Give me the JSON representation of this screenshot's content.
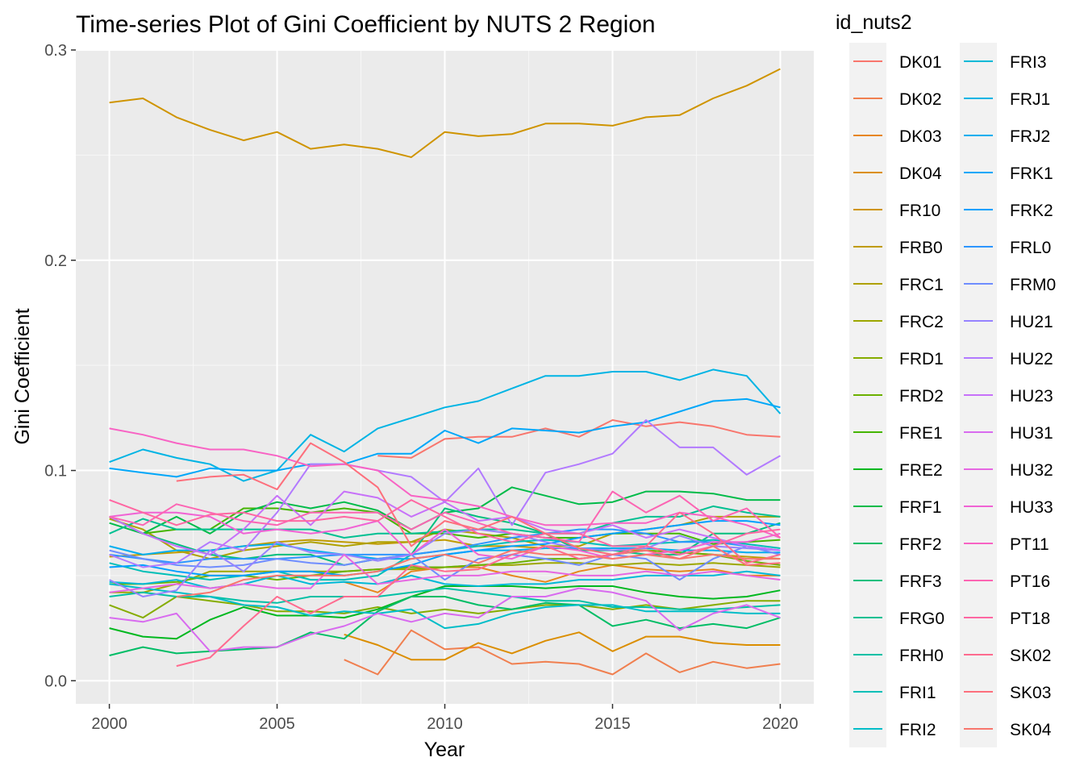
{
  "chart_data": {
    "type": "line",
    "title": "Time-series Plot of Gini Coefficient by NUTS 2 Region",
    "xlabel": "Year",
    "ylabel": "Gini Coefficient",
    "xlim": [
      1999,
      2021
    ],
    "ylim": [
      -0.011,
      0.3
    ],
    "x_ticks": [
      2000,
      2005,
      2010,
      2015,
      2020
    ],
    "x_tick_labels": [
      "2000",
      "2005",
      "2010",
      "2015",
      "2020"
    ],
    "y_ticks": [
      0.0,
      0.1,
      0.2,
      0.3
    ],
    "y_tick_labels": [
      "0.0",
      "0.1",
      "0.2",
      "0.3"
    ],
    "grid": true,
    "legend_title": "id_nuts2",
    "legend_position": "right",
    "legend_columns": 2,
    "x": [
      2000,
      2001,
      2002,
      2003,
      2004,
      2005,
      2006,
      2007,
      2008,
      2009,
      2010,
      2011,
      2012,
      2013,
      2014,
      2015,
      2016,
      2017,
      2018,
      2019,
      2020
    ],
    "series": [
      {
        "name": "DK01",
        "color": "#F8766D",
        "values": [
          null,
          null,
          null,
          null,
          null,
          null,
          null,
          null,
          0.107,
          0.106,
          0.115,
          0.116,
          0.116,
          0.12,
          0.116,
          0.124,
          0.121,
          0.123,
          0.121,
          0.117,
          0.116
        ]
      },
      {
        "name": "DK02",
        "color": "#F07F4F",
        "values": [
          null,
          null,
          null,
          null,
          null,
          null,
          null,
          0.01,
          0.003,
          0.024,
          0.015,
          0.016,
          0.008,
          0.009,
          0.008,
          0.003,
          0.013,
          0.004,
          0.009,
          0.006,
          0.008
        ]
      },
      {
        "name": "DK03",
        "color": "#E7861B",
        "values": [
          null,
          null,
          null,
          null,
          null,
          null,
          null,
          0.047,
          0.042,
          0.052,
          0.054,
          0.054,
          0.05,
          0.047,
          0.052,
          0.055,
          0.053,
          0.052,
          0.053,
          0.05,
          0.05
        ]
      },
      {
        "name": "DK04",
        "color": "#DB8E00",
        "values": [
          null,
          null,
          null,
          null,
          null,
          null,
          null,
          0.022,
          0.017,
          0.01,
          0.01,
          0.018,
          0.013,
          0.019,
          0.023,
          0.014,
          0.021,
          0.021,
          0.018,
          0.017,
          0.017
        ]
      },
      {
        "name": "FR10",
        "color": "#CF9400",
        "values": [
          0.275,
          0.277,
          0.268,
          0.262,
          0.257,
          0.261,
          0.253,
          0.255,
          0.253,
          0.249,
          0.261,
          0.259,
          0.26,
          0.265,
          0.265,
          0.264,
          0.268,
          0.269,
          0.277,
          0.283,
          0.291
        ]
      },
      {
        "name": "FRB0",
        "color": "#C09B00",
        "values": [
          0.059,
          0.06,
          0.061,
          0.062,
          0.064,
          0.066,
          0.067,
          0.066,
          0.065,
          0.066,
          0.067,
          0.064,
          0.064,
          0.063,
          0.063,
          0.062,
          0.062,
          0.061,
          0.06,
          0.059,
          0.058
        ]
      },
      {
        "name": "FRC1",
        "color": "#AFA100",
        "values": [
          0.077,
          0.072,
          0.062,
          0.058,
          0.062,
          0.064,
          0.066,
          0.064,
          0.066,
          0.066,
          0.072,
          0.07,
          0.068,
          0.064,
          0.064,
          0.07,
          0.072,
          0.074,
          0.078,
          0.078,
          0.078
        ]
      },
      {
        "name": "FRC2",
        "color": "#9DA700",
        "values": [
          0.042,
          0.042,
          0.046,
          0.052,
          0.052,
          0.052,
          0.052,
          0.052,
          0.053,
          0.053,
          0.054,
          0.055,
          0.055,
          0.056,
          0.056,
          0.055,
          0.056,
          0.055,
          0.056,
          0.055,
          0.054
        ]
      },
      {
        "name": "FRD1",
        "color": "#86AC00",
        "values": [
          0.036,
          0.03,
          0.04,
          0.038,
          0.036,
          0.033,
          0.033,
          0.032,
          0.035,
          0.032,
          0.034,
          0.032,
          0.034,
          0.036,
          0.036,
          0.034,
          0.036,
          0.034,
          0.036,
          0.038,
          0.038
        ]
      },
      {
        "name": "FRD2",
        "color": "#6BB100",
        "values": [
          0.046,
          0.046,
          0.047,
          0.05,
          0.05,
          0.048,
          0.05,
          0.052,
          0.053,
          0.054,
          0.054,
          0.055,
          0.056,
          0.058,
          0.058,
          0.06,
          0.062,
          0.061,
          0.06,
          0.057,
          0.055
        ]
      },
      {
        "name": "FRE1",
        "color": "#45B500",
        "values": [
          0.078,
          0.07,
          0.072,
          0.072,
          0.082,
          0.082,
          0.08,
          0.082,
          0.08,
          0.07,
          0.07,
          0.068,
          0.07,
          0.068,
          0.068,
          0.07,
          0.07,
          0.07,
          0.065,
          0.066,
          0.067
        ]
      },
      {
        "name": "FRE2",
        "color": "#00B81F",
        "values": [
          0.025,
          0.021,
          0.02,
          0.029,
          0.035,
          0.031,
          0.031,
          0.03,
          0.034,
          0.04,
          0.045,
          0.045,
          0.045,
          0.044,
          0.045,
          0.045,
          0.042,
          0.04,
          0.039,
          0.04,
          0.043
        ]
      },
      {
        "name": "FRF1",
        "color": "#00BB49",
        "values": [
          0.075,
          0.07,
          0.078,
          0.07,
          0.08,
          0.085,
          0.082,
          0.085,
          0.081,
          0.072,
          0.08,
          0.082,
          0.092,
          0.088,
          0.084,
          0.085,
          0.09,
          0.09,
          0.089,
          0.086,
          0.086
        ]
      },
      {
        "name": "FRF2",
        "color": "#00BD66",
        "values": [
          0.012,
          0.016,
          0.013,
          0.014,
          0.015,
          0.016,
          0.023,
          0.02,
          0.033,
          0.04,
          0.04,
          0.036,
          0.034,
          0.037,
          0.036,
          0.026,
          0.029,
          0.025,
          0.027,
          0.025,
          0.03
        ]
      },
      {
        "name": "FRF3",
        "color": "#00BF7D",
        "values": [
          0.078,
          0.07,
          0.065,
          0.06,
          0.058,
          0.06,
          0.06,
          0.055,
          0.058,
          0.06,
          0.082,
          0.078,
          0.075,
          0.07,
          0.062,
          0.062,
          0.06,
          0.06,
          0.07,
          0.07,
          0.075
        ]
      },
      {
        "name": "FRG0",
        "color": "#00C092",
        "values": [
          0.07,
          0.077,
          0.072,
          0.072,
          0.072,
          0.072,
          0.072,
          0.068,
          0.07,
          0.07,
          0.071,
          0.072,
          0.072,
          0.07,
          0.07,
          0.075,
          0.078,
          0.078,
          0.083,
          0.08,
          0.078
        ]
      },
      {
        "name": "FRH0",
        "color": "#00C0A5",
        "values": [
          0.04,
          0.042,
          0.04,
          0.04,
          0.038,
          0.037,
          0.04,
          0.04,
          0.04,
          0.042,
          0.044,
          0.042,
          0.04,
          0.038,
          0.038,
          0.035,
          0.035,
          0.034,
          0.034,
          0.035,
          0.036
        ]
      },
      {
        "name": "FRI1",
        "color": "#00BFB7",
        "values": [
          0.056,
          0.052,
          0.05,
          0.048,
          0.05,
          0.052,
          0.048,
          0.048,
          0.05,
          0.06,
          0.062,
          0.064,
          0.066,
          0.067,
          0.066,
          0.064,
          0.065,
          0.066,
          0.067,
          0.065,
          0.063
        ]
      },
      {
        "name": "FRI2",
        "color": "#00BDC8",
        "values": [
          0.046,
          0.044,
          0.042,
          0.04,
          0.036,
          0.035,
          0.031,
          0.033,
          0.032,
          0.034,
          0.025,
          0.027,
          0.032,
          0.035,
          0.036,
          0.036,
          0.033,
          0.033,
          0.033,
          0.032,
          0.032
        ]
      },
      {
        "name": "FRI3",
        "color": "#00B9D7",
        "values": [
          0.047,
          0.046,
          0.048,
          0.044,
          0.046,
          0.05,
          0.046,
          0.047,
          0.046,
          0.05,
          0.046,
          0.045,
          0.046,
          0.046,
          0.048,
          0.048,
          0.05,
          0.05,
          0.05,
          0.052,
          0.05
        ]
      },
      {
        "name": "FRJ1",
        "color": "#00B4E4",
        "values": [
          0.104,
          0.11,
          0.106,
          0.103,
          0.095,
          0.1,
          0.117,
          0.109,
          0.12,
          0.125,
          0.13,
          0.133,
          0.139,
          0.145,
          0.145,
          0.147,
          0.147,
          0.143,
          0.148,
          0.145,
          0.127
        ]
      },
      {
        "name": "FRJ2",
        "color": "#00AEEF",
        "values": [
          0.064,
          0.06,
          0.062,
          0.062,
          0.064,
          0.065,
          0.062,
          0.06,
          0.058,
          0.058,
          0.06,
          0.062,
          0.062,
          0.063,
          0.063,
          0.063,
          0.063,
          0.062,
          0.062,
          0.061,
          0.061
        ]
      },
      {
        "name": "FRK1",
        "color": "#00A7F9",
        "values": [
          0.101,
          0.099,
          0.097,
          0.101,
          0.1,
          0.1,
          0.103,
          0.103,
          0.108,
          0.108,
          0.119,
          0.113,
          0.12,
          0.119,
          0.118,
          0.121,
          0.123,
          0.128,
          0.133,
          0.134,
          0.13
        ]
      },
      {
        "name": "FRK2",
        "color": "#00A0FF",
        "values": [
          0.054,
          0.055,
          0.052,
          0.05,
          0.05,
          0.052,
          0.052,
          0.05,
          0.052,
          0.055,
          0.06,
          0.062,
          0.064,
          0.065,
          0.068,
          0.07,
          0.072,
          0.074,
          0.076,
          0.076,
          0.074
        ]
      },
      {
        "name": "FRL0",
        "color": "#2D96FF",
        "values": [
          0.06,
          0.058,
          0.056,
          0.058,
          0.058,
          0.058,
          0.059,
          0.06,
          0.06,
          0.06,
          0.062,
          0.065,
          0.068,
          0.07,
          0.072,
          0.072,
          0.07,
          0.066,
          0.066,
          0.064,
          0.062
        ]
      },
      {
        "name": "FRM0",
        "color": "#6F8DFF",
        "values": [
          0.062,
          0.058,
          0.055,
          0.054,
          0.055,
          0.058,
          0.056,
          0.055,
          0.058,
          0.06,
          0.048,
          0.058,
          0.06,
          0.058,
          0.055,
          0.06,
          0.058,
          0.048,
          0.058,
          0.064,
          0.06
        ]
      },
      {
        "name": "HU21",
        "color": "#9683FF",
        "values": [
          0.048,
          0.04,
          0.043,
          0.062,
          0.052,
          0.066,
          0.061,
          0.06,
          0.057,
          0.06,
          0.07,
          0.072,
          0.07,
          0.066,
          0.063,
          0.062,
          0.063,
          0.069,
          0.064,
          0.063,
          0.062
        ]
      },
      {
        "name": "HU22",
        "color": "#B27AFF",
        "values": [
          0.06,
          0.054,
          0.056,
          0.066,
          0.062,
          0.08,
          0.103,
          0.103,
          0.1,
          0.097,
          0.085,
          0.101,
          0.074,
          0.099,
          0.103,
          0.108,
          0.124,
          0.111,
          0.111,
          0.098,
          0.107
        ]
      },
      {
        "name": "HU23",
        "color": "#C771F9",
        "values": [
          0.078,
          0.07,
          0.064,
          0.06,
          0.072,
          0.088,
          0.074,
          0.09,
          0.087,
          0.078,
          0.085,
          0.076,
          0.078,
          0.072,
          0.07,
          0.074,
          0.068,
          0.072,
          0.068,
          0.064,
          0.062
        ]
      },
      {
        "name": "HU31",
        "color": "#D86BEF",
        "values": [
          0.03,
          0.028,
          0.032,
          0.014,
          0.016,
          0.016,
          0.022,
          0.026,
          0.032,
          0.028,
          0.032,
          0.03,
          0.04,
          0.04,
          0.044,
          0.042,
          0.038,
          0.024,
          0.032,
          0.036,
          0.03
        ]
      },
      {
        "name": "HU32",
        "color": "#E667E2",
        "values": [
          0.042,
          0.044,
          0.046,
          0.044,
          0.046,
          0.044,
          0.044,
          0.06,
          0.046,
          0.048,
          0.05,
          0.05,
          0.052,
          0.052,
          0.05,
          0.05,
          0.052,
          0.05,
          0.052,
          0.05,
          0.048
        ]
      },
      {
        "name": "HU33",
        "color": "#F063D4",
        "values": [
          0.078,
          0.08,
          0.08,
          0.078,
          0.07,
          0.072,
          0.07,
          0.072,
          0.076,
          0.06,
          0.072,
          0.06,
          0.058,
          0.064,
          0.062,
          0.058,
          0.06,
          0.062,
          0.066,
          0.066,
          0.07
        ]
      },
      {
        "name": "PT11",
        "color": "#F863C4",
        "values": [
          0.12,
          0.117,
          0.113,
          0.11,
          0.11,
          0.107,
          0.102,
          0.103,
          0.1,
          0.088,
          0.086,
          0.083,
          0.078,
          0.074,
          0.074,
          0.075,
          0.075,
          0.08,
          0.078,
          0.074,
          0.068
        ]
      },
      {
        "name": "PT16",
        "color": "#FC65B3",
        "values": [
          0.078,
          0.074,
          0.084,
          0.08,
          0.076,
          0.074,
          0.08,
          0.08,
          0.08,
          0.072,
          0.08,
          0.075,
          0.07,
          0.068,
          0.066,
          0.09,
          0.08,
          0.088,
          0.076,
          0.082,
          0.068
        ]
      },
      {
        "name": "PT18",
        "color": "#FF67A2",
        "values": [
          0.086,
          0.08,
          0.074,
          0.079,
          0.08,
          0.076,
          0.076,
          0.078,
          0.076,
          0.086,
          0.078,
          0.07,
          0.066,
          0.07,
          0.07,
          0.064,
          0.064,
          0.06,
          0.064,
          0.07,
          0.072
        ]
      },
      {
        "name": "SK02",
        "color": "#FF6B8F",
        "values": [
          null,
          null,
          0.007,
          0.011,
          0.026,
          0.04,
          0.032,
          0.04,
          0.04,
          0.055,
          0.052,
          0.053,
          0.06,
          0.064,
          0.058,
          0.06,
          0.064,
          0.08,
          0.07,
          0.056,
          0.06
        ]
      },
      {
        "name": "SK03",
        "color": "#FD6F7C",
        "values": [
          null,
          null,
          0.095,
          0.097,
          0.098,
          0.091,
          0.113,
          0.104,
          0.092,
          0.064,
          0.076,
          0.072,
          0.078,
          0.07,
          0.063,
          0.06,
          0.062,
          0.058,
          0.064,
          0.055,
          0.056
        ]
      },
      {
        "name": "SK04",
        "color": "#F8766D",
        "values": [
          null,
          null,
          0.04,
          0.042,
          0.048,
          0.05,
          0.05,
          0.05,
          0.052,
          0.058,
          0.06,
          0.056,
          0.062,
          0.06,
          0.06,
          0.058,
          0.06,
          0.058,
          0.06,
          0.058,
          0.058
        ]
      }
    ]
  }
}
